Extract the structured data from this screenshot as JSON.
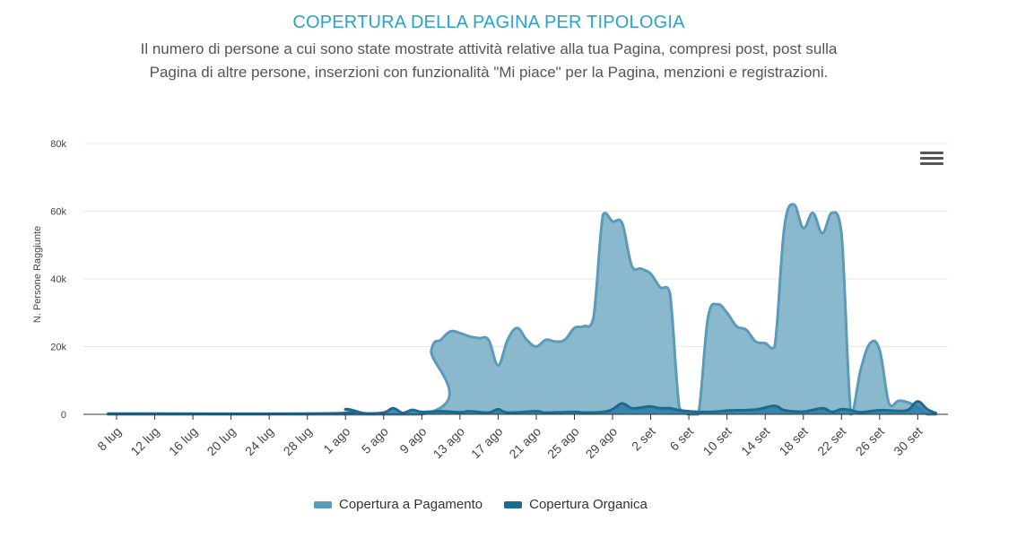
{
  "title": "COPERTURA DELLA PAGINA PER TIPOLOGIA",
  "subtitle": "Il numero di persone a cui sono state mostrate attività relative alla tua Pagina, compresi post, post sulla Pagina di altre persone, inserzioni con funzionalità \"Mi piace\" per la Pagina, menzioni e registrazioni.",
  "menu_icon": "hamburger-menu-icon",
  "chart_data": {
    "type": "area",
    "title": "COPERTURA DELLA PAGINA PER TIPOLOGIA",
    "ylabel": "N. Persone Raggiunte",
    "xlabel": "",
    "ylim": [
      0,
      80000
    ],
    "yticks": [
      0,
      20000,
      40000,
      60000,
      80000
    ],
    "ytick_labels": [
      "0",
      "20k",
      "40k",
      "60k",
      "80k"
    ],
    "x_start": "2018-07-08",
    "x_end": "2018-10-01",
    "xtick_dates": [
      "2018-07-08",
      "2018-07-12",
      "2018-07-16",
      "2018-07-20",
      "2018-07-24",
      "2018-07-28",
      "2018-08-01",
      "2018-08-05",
      "2018-08-09",
      "2018-08-13",
      "2018-08-17",
      "2018-08-21",
      "2018-08-25",
      "2018-08-29",
      "2018-09-02",
      "2018-09-06",
      "2018-09-10",
      "2018-09-14",
      "2018-09-18",
      "2018-09-22",
      "2018-09-26",
      "2018-09-30"
    ],
    "xtick_labels": [
      "8 lug",
      "12 lug",
      "16 lug",
      "20 lug",
      "24 lug",
      "28 lug",
      "1 ago",
      "5 ago",
      "9 ago",
      "13 ago",
      "17 ago",
      "21 ago",
      "25 ago",
      "29 ago",
      "2 set",
      "6 set",
      "10 set",
      "14 set",
      "18 set",
      "22 set",
      "26 set",
      "30 set"
    ],
    "grid": true,
    "legend_position": "bottom",
    "series": [
      {
        "name": "Copertura a Pagamento",
        "color": "#5b9ab8",
        "fill": "#8ab9cd",
        "points": [
          [
            "2018-07-07",
            0
          ],
          [
            "2018-08-09",
            0
          ],
          [
            "2018-08-10",
            19000
          ],
          [
            "2018-08-11",
            22000
          ],
          [
            "2018-08-12",
            24500
          ],
          [
            "2018-08-13",
            24000
          ],
          [
            "2018-08-14",
            23000
          ],
          [
            "2018-08-15",
            22500
          ],
          [
            "2018-08-16",
            22000
          ],
          [
            "2018-08-17",
            14500
          ],
          [
            "2018-08-18",
            22000
          ],
          [
            "2018-08-19",
            25500
          ],
          [
            "2018-08-20",
            22000
          ],
          [
            "2018-08-21",
            20000
          ],
          [
            "2018-08-22",
            22000
          ],
          [
            "2018-08-23",
            21500
          ],
          [
            "2018-08-24",
            22000
          ],
          [
            "2018-08-25",
            25500
          ],
          [
            "2018-08-26",
            26000
          ],
          [
            "2018-08-27",
            28500
          ],
          [
            "2018-08-28",
            59000
          ],
          [
            "2018-08-29",
            57000
          ],
          [
            "2018-08-30",
            56500
          ],
          [
            "2018-08-31",
            44000
          ],
          [
            "2018-09-01",
            43000
          ],
          [
            "2018-09-02",
            41500
          ],
          [
            "2018-09-03",
            37500
          ],
          [
            "2018-09-04",
            36000
          ],
          [
            "2018-09-05",
            2000
          ],
          [
            "2018-09-06",
            0
          ],
          [
            "2018-09-07",
            0
          ],
          [
            "2018-09-08",
            28500
          ],
          [
            "2018-09-09",
            32500
          ],
          [
            "2018-09-10",
            30000
          ],
          [
            "2018-09-11",
            26000
          ],
          [
            "2018-09-12",
            25000
          ],
          [
            "2018-09-13",
            21500
          ],
          [
            "2018-09-14",
            21000
          ],
          [
            "2018-09-15",
            20000
          ],
          [
            "2018-09-16",
            55000
          ],
          [
            "2018-09-17",
            62000
          ],
          [
            "2018-09-18",
            55000
          ],
          [
            "2018-09-19",
            59500
          ],
          [
            "2018-09-20",
            53500
          ],
          [
            "2018-09-21",
            59500
          ],
          [
            "2018-09-22",
            53500
          ],
          [
            "2018-09-23",
            0
          ],
          [
            "2018-09-24",
            13000
          ],
          [
            "2018-09-25",
            21000
          ],
          [
            "2018-09-26",
            19000
          ],
          [
            "2018-09-27",
            3000
          ],
          [
            "2018-09-28",
            4000
          ],
          [
            "2018-09-29",
            3500
          ],
          [
            "2018-09-30",
            2000
          ],
          [
            "2018-10-01",
            0
          ],
          [
            "2018-10-02",
            0
          ]
        ]
      },
      {
        "name": "Copertura Organica",
        "color": "#1c6a8e",
        "fill": "#2a7aa3",
        "points": [
          [
            "2018-07-07",
            200
          ],
          [
            "2018-07-31",
            300
          ],
          [
            "2018-08-01",
            1500
          ],
          [
            "2018-08-02",
            1000
          ],
          [
            "2018-08-03",
            300
          ],
          [
            "2018-08-05",
            500
          ],
          [
            "2018-08-06",
            1800
          ],
          [
            "2018-08-07",
            400
          ],
          [
            "2018-08-08",
            1300
          ],
          [
            "2018-08-09",
            700
          ],
          [
            "2018-08-11",
            900
          ],
          [
            "2018-08-13",
            600
          ],
          [
            "2018-08-14",
            900
          ],
          [
            "2018-08-16",
            500
          ],
          [
            "2018-08-17",
            1500
          ],
          [
            "2018-08-18",
            500
          ],
          [
            "2018-08-21",
            900
          ],
          [
            "2018-08-22",
            500
          ],
          [
            "2018-08-25",
            700
          ],
          [
            "2018-08-26",
            500
          ],
          [
            "2018-08-28",
            700
          ],
          [
            "2018-08-29",
            1500
          ],
          [
            "2018-08-30",
            3200
          ],
          [
            "2018-08-31",
            1800
          ],
          [
            "2018-09-01",
            2000
          ],
          [
            "2018-09-02",
            2300
          ],
          [
            "2018-09-03",
            1800
          ],
          [
            "2018-09-04",
            1800
          ],
          [
            "2018-09-05",
            1200
          ],
          [
            "2018-09-07",
            700
          ],
          [
            "2018-09-09",
            800
          ],
          [
            "2018-09-10",
            1100
          ],
          [
            "2018-09-13",
            1400
          ],
          [
            "2018-09-15",
            2500
          ],
          [
            "2018-09-16",
            1200
          ],
          [
            "2018-09-18",
            800
          ],
          [
            "2018-09-20",
            1800
          ],
          [
            "2018-09-21",
            700
          ],
          [
            "2018-09-22",
            1500
          ],
          [
            "2018-09-23",
            1200
          ],
          [
            "2018-09-24",
            600
          ],
          [
            "2018-09-26",
            1200
          ],
          [
            "2018-09-28",
            1000
          ],
          [
            "2018-09-29",
            1300
          ],
          [
            "2018-09-30",
            3800
          ],
          [
            "2018-10-01",
            1500
          ],
          [
            "2018-10-02",
            200
          ]
        ]
      }
    ]
  }
}
